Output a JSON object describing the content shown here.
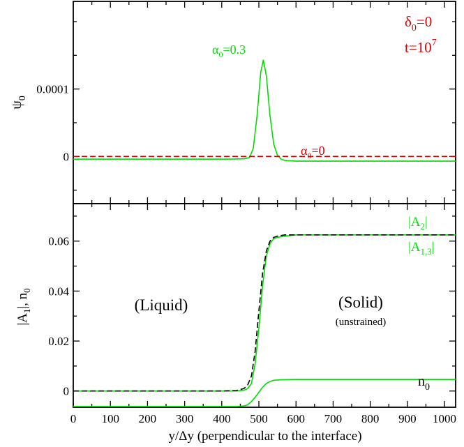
{
  "chart_data": [
    {
      "type": "line",
      "panel": "top",
      "ylabel": "ψ0",
      "ylabel_main": "ψ",
      "ylabel_sub": "0",
      "xlim": [
        0,
        1030
      ],
      "ylim": [
        -7e-05,
        0.00023
      ],
      "yticks": [
        {
          "v": 0,
          "label": "0"
        },
        {
          "v": 0.0001,
          "label": "0.0001"
        }
      ],
      "xticks": [
        0,
        100,
        200,
        300,
        400,
        500,
        600,
        700,
        800,
        900,
        1000
      ],
      "series": [
        {
          "name": "α0=0.3",
          "color": "#00dd00",
          "dash": "solid",
          "x": [
            0,
            300,
            420,
            460,
            475,
            485,
            495,
            505,
            512,
            520,
            530,
            540,
            550,
            560,
            570,
            580,
            600,
            700,
            1030
          ],
          "y": [
            -4e-06,
            -4e-06,
            -4e-06,
            -3.5e-06,
            -1.5e-06,
            1.2e-05,
            6e-05,
            0.000125,
            0.000143,
            0.00012,
            6e-05,
            1.8e-05,
            2e-06,
            -4e-06,
            -6e-06,
            -6.5e-06,
            -7e-06,
            -7e-06,
            -7e-06
          ]
        },
        {
          "name": "α0=0",
          "color": "#dd0000",
          "dash": "dashed",
          "x": [
            0,
            1030
          ],
          "y": [
            0,
            0
          ]
        }
      ],
      "annotations": [
        {
          "id": "alpha03",
          "main": "α",
          "sub": "0",
          "tail": "=0.3",
          "color": "#00dd00"
        },
        {
          "id": "alpha0",
          "main": "α",
          "sub": "0",
          "tail": "=0",
          "color": "#dd0000"
        },
        {
          "id": "delta0",
          "main": "δ",
          "sub": "0",
          "tail": "=0",
          "color": "#dd0000"
        },
        {
          "id": "time",
          "main": "t=10",
          "sup": "7",
          "color": "#dd0000"
        }
      ]
    },
    {
      "type": "line",
      "panel": "bottom",
      "ylabel": "|A1|, n0",
      "xlabel": "y/Δy (perpendicular to the interface)",
      "xlim": [
        0,
        1030
      ],
      "ylim": [
        -0.0065,
        0.075
      ],
      "yticks": [
        {
          "v": 0,
          "label": "0"
        },
        {
          "v": 0.02,
          "label": "0.02"
        },
        {
          "v": 0.04,
          "label": "0.04"
        },
        {
          "v": 0.06,
          "label": "0.06"
        }
      ],
      "xticks": [
        0,
        100,
        200,
        300,
        400,
        500,
        600,
        700,
        800,
        900,
        1000
      ],
      "series": [
        {
          "name": "|A1,3|",
          "color": "#00dd00",
          "dash": "solid",
          "x": [
            0,
            400,
            440,
            460,
            470,
            480,
            490,
            500,
            510,
            520,
            530,
            540,
            550,
            570,
            600,
            1030
          ],
          "y": [
            0,
            0,
            0,
            0.0003,
            0.001,
            0.003,
            0.011,
            0.025,
            0.042,
            0.054,
            0.059,
            0.061,
            0.0615,
            0.062,
            0.0625,
            0.0625
          ]
        },
        {
          "name": "|A2|",
          "color": "#000000",
          "dash": "dashed",
          "x": [
            0,
            400,
            440,
            460,
            470,
            480,
            490,
            500,
            510,
            520,
            530,
            540,
            550,
            570,
            600,
            1030
          ],
          "y": [
            0,
            0,
            0.0002,
            0.001,
            0.0025,
            0.006,
            0.016,
            0.032,
            0.047,
            0.056,
            0.06,
            0.0615,
            0.062,
            0.0625,
            0.0625,
            0.0625
          ]
        },
        {
          "name": "n0",
          "color": "#00dd00",
          "dash": "solid",
          "x": [
            0,
            440,
            460,
            470,
            480,
            490,
            500,
            510,
            520,
            530,
            540,
            560,
            600,
            1030
          ],
          "y": [
            -0.0062,
            -0.0062,
            -0.006,
            -0.0055,
            -0.0042,
            -0.0025,
            -0.0005,
            0.0015,
            0.003,
            0.0038,
            0.0043,
            0.0045,
            0.0046,
            0.0046
          ]
        }
      ],
      "annotations": [
        {
          "id": "liquid",
          "text": "(Liquid)"
        },
        {
          "id": "solid",
          "text": "(Solid)"
        },
        {
          "id": "unstrained",
          "text": "(unstrained)"
        },
        {
          "id": "a2",
          "main": "|A",
          "sub": "2",
          "tail": "|",
          "color": "#00dd00"
        },
        {
          "id": "a13",
          "main": "|A",
          "sub": "1,3",
          "tail": "|",
          "color": "#00dd00"
        },
        {
          "id": "n0lbl",
          "main": "n",
          "sub": "0",
          "color": "#000000"
        }
      ]
    }
  ]
}
